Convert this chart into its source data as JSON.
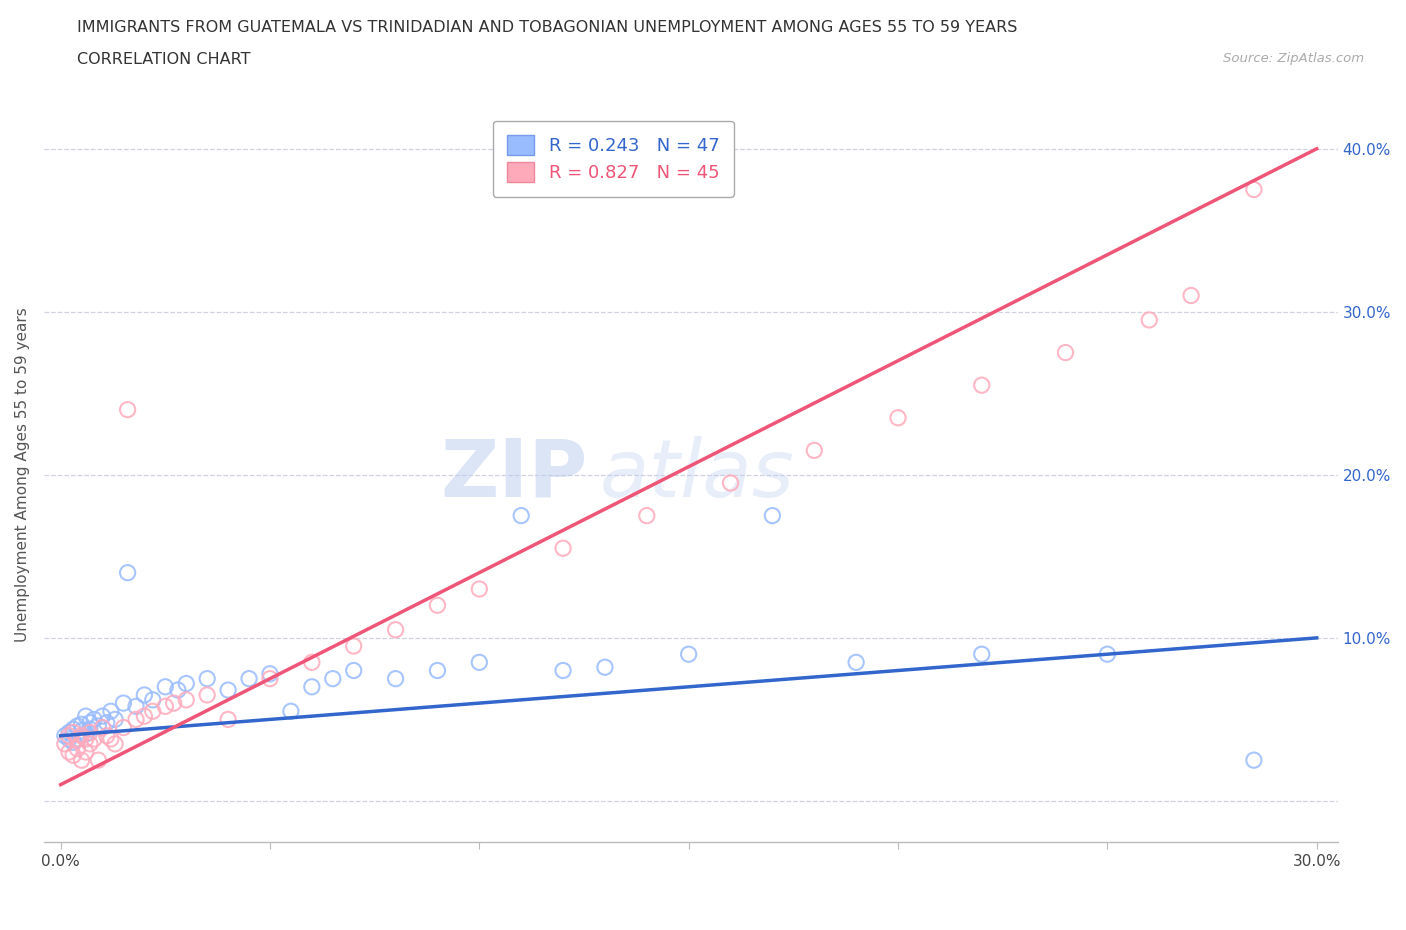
{
  "title_line1": "IMMIGRANTS FROM GUATEMALA VS TRINIDADIAN AND TOBAGONIAN UNEMPLOYMENT AMONG AGES 55 TO 59 YEARS",
  "title_line2": "CORRELATION CHART",
  "source_text": "Source: ZipAtlas.com",
  "ylabel": "Unemployment Among Ages 55 to 59 years",
  "color_blue": "#99BBFF",
  "color_pink": "#FFAABB",
  "color_blue_line": "#3366CC",
  "color_pink_line": "#EE5577",
  "legend_blue_r": "R = 0.243",
  "legend_blue_n": "N = 47",
  "legend_pink_r": "R = 0.827",
  "legend_pink_n": "N = 45",
  "watermark_zip": "ZIP",
  "watermark_atlas": "atlas",
  "blue_line_x": [
    0.0,
    0.3
  ],
  "blue_line_y": [
    0.04,
    0.1
  ],
  "pink_line_x": [
    0.0,
    0.3
  ],
  "pink_line_y": [
    0.01,
    0.4
  ],
  "xlim": [
    -0.004,
    0.305
  ],
  "ylim": [
    -0.025,
    0.425
  ],
  "xticks": [
    0.0,
    0.05,
    0.1,
    0.15,
    0.2,
    0.25,
    0.3
  ],
  "xtick_labels": [
    "0.0%",
    "",
    "",
    "",
    "",
    "",
    "30.0%"
  ],
  "yticks": [
    0.0,
    0.1,
    0.2,
    0.3,
    0.4
  ],
  "ytick_labels_right": [
    "",
    "10.0%",
    "20.0%",
    "30.0%",
    "40.0%"
  ],
  "blue_scatter_x": [
    0.001,
    0.002,
    0.002,
    0.003,
    0.003,
    0.004,
    0.004,
    0.005,
    0.005,
    0.006,
    0.006,
    0.007,
    0.007,
    0.008,
    0.009,
    0.01,
    0.011,
    0.012,
    0.013,
    0.015,
    0.016,
    0.018,
    0.02,
    0.022,
    0.025,
    0.028,
    0.03,
    0.035,
    0.04,
    0.045,
    0.05,
    0.055,
    0.06,
    0.065,
    0.07,
    0.08,
    0.09,
    0.1,
    0.11,
    0.12,
    0.13,
    0.15,
    0.17,
    0.19,
    0.22,
    0.25,
    0.285
  ],
  "blue_scatter_y": [
    0.04,
    0.042,
    0.038,
    0.044,
    0.036,
    0.046,
    0.038,
    0.043,
    0.047,
    0.041,
    0.052,
    0.044,
    0.048,
    0.05,
    0.046,
    0.052,
    0.048,
    0.055,
    0.05,
    0.06,
    0.14,
    0.058,
    0.065,
    0.062,
    0.07,
    0.068,
    0.072,
    0.075,
    0.068,
    0.075,
    0.078,
    0.055,
    0.07,
    0.075,
    0.08,
    0.075,
    0.08,
    0.085,
    0.175,
    0.08,
    0.082,
    0.09,
    0.175,
    0.085,
    0.09,
    0.09,
    0.025
  ],
  "pink_scatter_x": [
    0.001,
    0.002,
    0.002,
    0.003,
    0.003,
    0.004,
    0.004,
    0.005,
    0.005,
    0.006,
    0.006,
    0.007,
    0.007,
    0.008,
    0.009,
    0.01,
    0.011,
    0.012,
    0.013,
    0.015,
    0.016,
    0.018,
    0.02,
    0.022,
    0.025,
    0.027,
    0.03,
    0.035,
    0.04,
    0.05,
    0.06,
    0.07,
    0.08,
    0.09,
    0.1,
    0.12,
    0.14,
    0.16,
    0.18,
    0.2,
    0.22,
    0.24,
    0.26,
    0.27,
    0.285
  ],
  "pink_scatter_y": [
    0.035,
    0.04,
    0.03,
    0.042,
    0.028,
    0.038,
    0.032,
    0.04,
    0.025,
    0.038,
    0.03,
    0.042,
    0.035,
    0.038,
    0.025,
    0.045,
    0.04,
    0.038,
    0.035,
    0.045,
    0.24,
    0.05,
    0.052,
    0.055,
    0.058,
    0.06,
    0.062,
    0.065,
    0.05,
    0.075,
    0.085,
    0.095,
    0.105,
    0.12,
    0.13,
    0.155,
    0.175,
    0.195,
    0.215,
    0.235,
    0.255,
    0.275,
    0.295,
    0.31,
    0.375
  ]
}
